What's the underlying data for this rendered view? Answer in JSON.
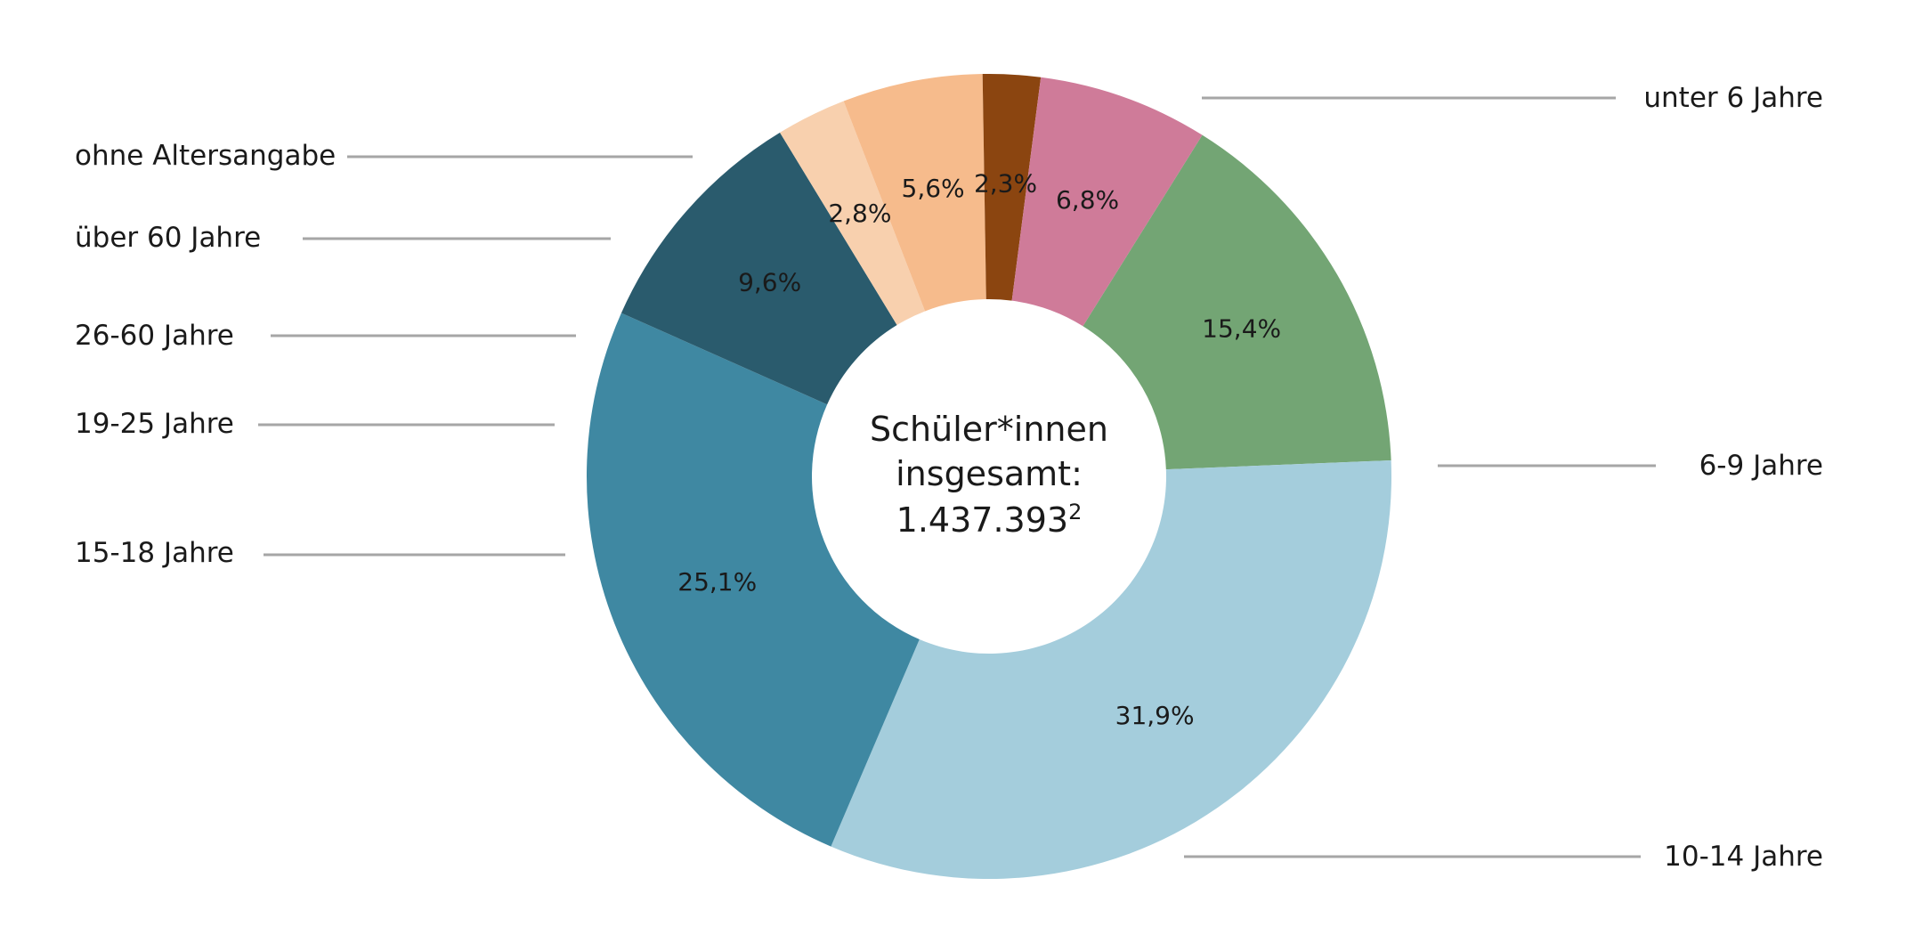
{
  "chart_data": {
    "type": "pie",
    "variant": "donut",
    "series": [
      {
        "name": "unter 6 Jahre",
        "value": 15.4,
        "label": "15,4%",
        "color": "#73a574"
      },
      {
        "name": "6-9 Jahre",
        "value": 31.9,
        "label": "31,9%",
        "color": "#a4cddc"
      },
      {
        "name": "10-14 Jahre",
        "value": 25.1,
        "label": "25,1%",
        "color": "#3f88a2"
      },
      {
        "name": "15-18 Jahre",
        "value": 9.6,
        "label": "9,6%",
        "color": "#2a5b6d"
      },
      {
        "name": "19-25 Jahre",
        "value": 2.8,
        "label": "2,8%",
        "color": "#f8d0ae"
      },
      {
        "name": "26-60 Jahre",
        "value": 5.6,
        "label": "5,6%",
        "color": "#f6bb8c"
      },
      {
        "name": "über 60 Jahre",
        "value": 2.3,
        "label": "2,3%",
        "color": "#8b4510"
      },
      {
        "name": "ohne Altersangabe",
        "value": 6.8,
        "label": "6,8%",
        "color": "#cf7b99"
      }
    ],
    "center_text": {
      "line1": "Schüler*innen",
      "line2": "insgesamt:",
      "line3": "1.437.393",
      "superscript": "2"
    },
    "legend_placement": "leader lines to both sides"
  }
}
